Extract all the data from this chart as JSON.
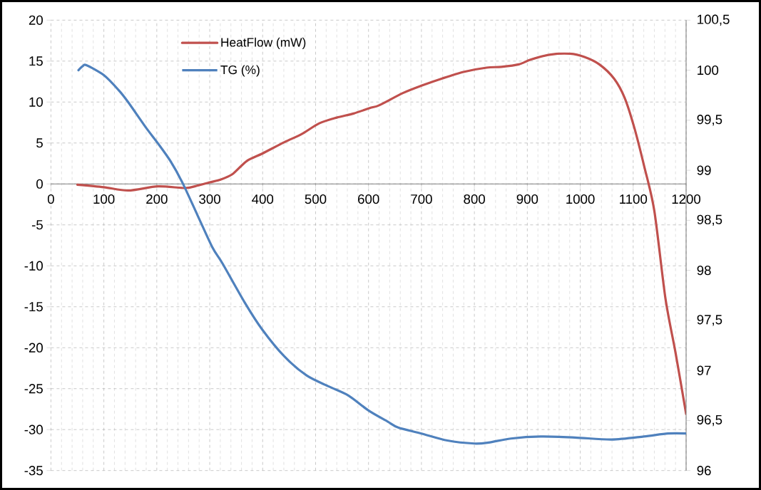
{
  "chart_data": {
    "type": "line",
    "xlim": [
      0,
      1200
    ],
    "xticks": [
      0,
      100,
      200,
      300,
      400,
      500,
      600,
      700,
      800,
      900,
      1000,
      1100,
      1200
    ],
    "ylim": [
      -35,
      20
    ],
    "yticks": [
      -35,
      -30,
      -25,
      -20,
      -15,
      -10,
      -5,
      0,
      5,
      10,
      15,
      20
    ],
    "y2lim": [
      96,
      100.5
    ],
    "y2ticks": [
      {
        "value": 96,
        "label": "96"
      },
      {
        "value": 96.5,
        "label": "96,5"
      },
      {
        "value": 97,
        "label": "97"
      },
      {
        "value": 97.5,
        "label": "97,5"
      },
      {
        "value": 98,
        "label": "98"
      },
      {
        "value": 98.5,
        "label": "98,5"
      },
      {
        "value": 99,
        "label": "99"
      },
      {
        "value": 99.5,
        "label": "99,5"
      },
      {
        "value": 100,
        "label": "100"
      },
      {
        "value": 100.5,
        "label": "100,5"
      }
    ],
    "grid": true,
    "legend": "top left",
    "marker": "none",
    "line_style": "solid",
    "series": [
      {
        "name": "HeatFlow  (mW)",
        "color": "#c0504d",
        "x": [
          50,
          100,
          146,
          202,
          254,
          277,
          300,
          319,
          343,
          370,
          399,
          441,
          474,
          507,
          540,
          572,
          604,
          620,
          665,
          700,
          740,
          781,
          823,
          851,
          884,
          907,
          944,
          981,
          1008,
          1036,
          1064,
          1084,
          1102,
          1121,
          1140,
          1161,
          1180,
          1200
        ],
        "values": [
          -0.1,
          -0.4,
          -0.8,
          -0.3,
          -0.5,
          -0.2,
          0.2,
          0.5,
          1.2,
          2.8,
          3.7,
          5.1,
          6.1,
          7.4,
          8.1,
          8.6,
          9.3,
          9.6,
          11.1,
          12.0,
          12.9,
          13.7,
          14.2,
          14.3,
          14.6,
          15.2,
          15.8,
          15.9,
          15.5,
          14.6,
          12.85,
          10.5,
          6.9,
          2.1,
          -3.3,
          -14.0,
          -20.6,
          -28.1
        ]
      },
      {
        "name": "TG  (%)",
        "color": "#4f81bd",
        "axis": "y2",
        "x": [
          52,
          60,
          67,
          100,
          128,
          146,
          179,
          202,
          226,
          249,
          277,
          305,
          324,
          366,
          399,
          441,
          483,
          525,
          562,
          600,
          636,
          656,
          700,
          749,
          800,
          827,
          869,
          925,
          990,
          1059,
          1120,
          1166,
          1200
        ],
        "values": [
          100.0,
          100.04,
          100.05,
          99.95,
          99.8,
          99.68,
          99.43,
          99.27,
          99.09,
          98.87,
          98.55,
          98.23,
          98.07,
          97.68,
          97.41,
          97.14,
          96.95,
          96.84,
          96.75,
          96.6,
          96.49,
          96.43,
          96.37,
          96.3,
          96.27,
          96.28,
          96.32,
          96.34,
          96.33,
          96.31,
          96.34,
          96.37,
          96.37
        ]
      }
    ]
  }
}
